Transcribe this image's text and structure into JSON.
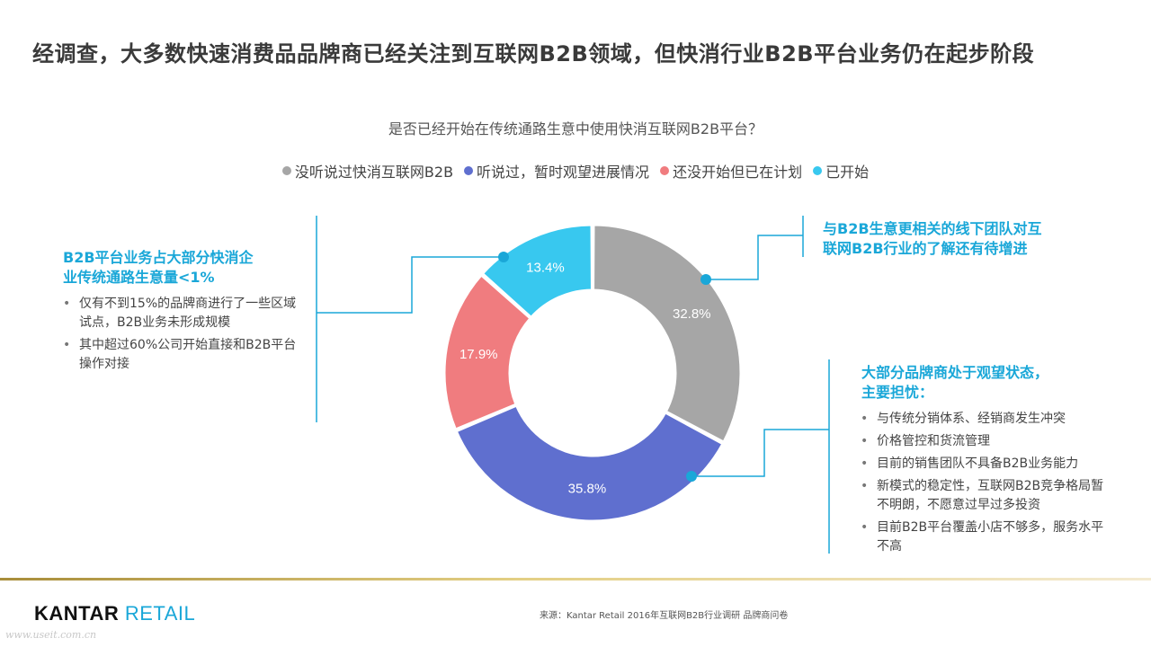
{
  "title": "经调查，大多数快速消费品品牌商已经关注到互联网B2B领域，但快消行业B2B平台业务仍在起步阶段",
  "chart_data": {
    "type": "pie",
    "title": "是否已经开始在传统通路生意中使用快消互联网B2B平台？",
    "legend_position": "top-center",
    "categories": [
      "没听说过快消互联网B2B",
      "听说过，暂时观望进展情况",
      "还没开始但已在计划",
      "已开始"
    ],
    "values": [
      32.8,
      35.8,
      17.9,
      13.4
    ],
    "labels": [
      "32.8%",
      "35.8%",
      "17.9%",
      "13.4%"
    ],
    "colors": [
      "#a6a6a6",
      "#5f6fcf",
      "#f07c7f",
      "#38c8ef"
    ]
  },
  "callout_left": {
    "title_line1": "B2B平台业务占大部分快消企",
    "title_line2": "业传统通路生意量<1%",
    "bullets": [
      "仅有不到15%的品牌商进行了一些区域试点，B2B业务未形成规模",
      "其中超过60%公司开始直接和B2B平台操作对接"
    ]
  },
  "callout_right_top": {
    "title_line1": "与B2B生意更相关的线下团队对互",
    "title_line2": "联网B2B行业的了解还有待增进"
  },
  "callout_right_bottom": {
    "title_line1": "大部分品牌商处于观望状态，",
    "title_line2": "主要担忧：",
    "bullets": [
      "与传统分销体系、经销商发生冲突",
      "价格管控和货流管理",
      "目前的销售团队不具备B2B业务能力",
      "新模式的稳定性，互联网B2B竞争格局暂不明朗，不愿意过早过多投资",
      "目前B2B平台覆盖小店不够多，服务水平不高"
    ]
  },
  "accent_color": "#1aa7d8",
  "footer": {
    "logo_part1": "KANTAR",
    "logo_part2": "RETAIL",
    "source": "来源：Kantar Retail 2016年互联网B2B行业调研 品牌商问卷",
    "watermark": "www.useit.com.cn"
  }
}
